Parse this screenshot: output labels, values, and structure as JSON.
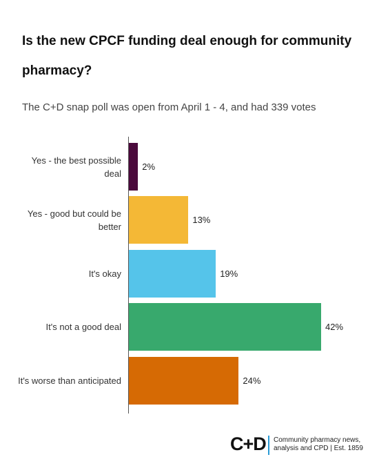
{
  "chart_data": {
    "type": "bar",
    "orientation": "horizontal",
    "title": "Is the new CPCF funding deal enough for community pharmacy?",
    "subtitle": "The C+D snap poll was open from April 1 - 4, and had 339 votes",
    "categories": [
      "Yes - the best possible deal",
      "Yes - good but could be better",
      "It's okay",
      "It's not a good deal",
      "It's worse than anticipated"
    ],
    "values": [
      2,
      13,
      19,
      42,
      24
    ],
    "value_labels": [
      "2%",
      "13%",
      "19%",
      "42%",
      "24%"
    ],
    "colors": [
      "#4b0a3c",
      "#f4b836",
      "#55c4ea",
      "#38a96d",
      "#d66a04"
    ]
  },
  "logo": {
    "mark": "C+D",
    "tagline": "Community pharmacy news, analysis and CPD | Est. 1859"
  }
}
